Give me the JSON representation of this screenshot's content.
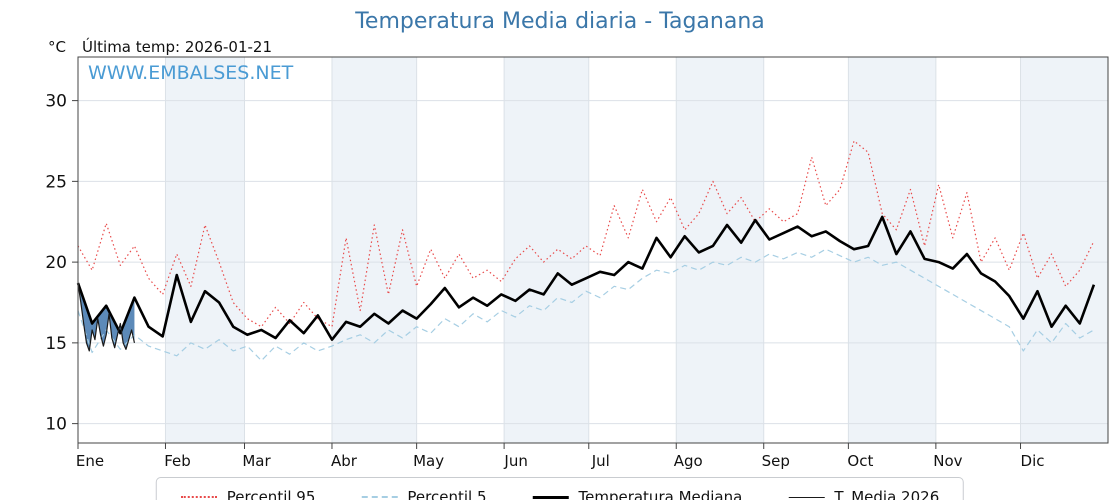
{
  "header": {
    "title": "Temperatura Media diaria - Taganana",
    "unit": "°C",
    "last_temp": "Última temp: 2026-01-21"
  },
  "watermark": "WWW.EMBALSES.NET",
  "legend": [
    {
      "label": "Percentil 95",
      "color": "#e84a4a",
      "line_style": "dotted",
      "thickness": 2
    },
    {
      "label": "Percentil 5",
      "color": "#a6cee3",
      "line_style": "dashed",
      "thickness": 2
    },
    {
      "label": "Temperatura Mediana",
      "color": "#000000",
      "line_style": "solid",
      "thickness": 3
    },
    {
      "label": "T. Media 2026",
      "color": "#1a1a1a",
      "line_style": "solid",
      "thickness": 1
    }
  ],
  "chart_data": {
    "type": "line",
    "title": "Temperatura Media diaria - Taganana",
    "xlabel": "",
    "ylabel": "°C",
    "ylim": [
      8.8,
      32.7
    ],
    "yticks": [
      10,
      15,
      20,
      25,
      30
    ],
    "x_max": 365,
    "grid": true,
    "band_color": "#eef3f8",
    "legend_position": "bottom",
    "month_labels": [
      "Ene",
      "Feb",
      "Mar",
      "Abr",
      "May",
      "Jun",
      "Jul",
      "Ago",
      "Sep",
      "Oct",
      "Nov",
      "Dic"
    ],
    "month_starts": [
      0,
      31,
      59,
      90,
      120,
      151,
      181,
      212,
      243,
      273,
      304,
      334
    ],
    "x_days": [
      0,
      5,
      10,
      15,
      20,
      25,
      30,
      35,
      40,
      45,
      50,
      55,
      60,
      65,
      70,
      75,
      80,
      85,
      90,
      95,
      100,
      105,
      110,
      115,
      120,
      125,
      130,
      135,
      140,
      145,
      150,
      155,
      160,
      165,
      170,
      175,
      180,
      185,
      190,
      195,
      200,
      205,
      210,
      215,
      220,
      225,
      230,
      235,
      240,
      245,
      250,
      255,
      260,
      265,
      270,
      275,
      280,
      285,
      290,
      295,
      300,
      305,
      310,
      315,
      320,
      325,
      330,
      335,
      340,
      345,
      350,
      355,
      360
    ],
    "series": [
      {
        "name": "Percentil 95",
        "color": "#e84a4a",
        "dash": "dotted",
        "width": 1.2,
        "values": [
          21.0,
          19.5,
          22.4,
          19.8,
          21.0,
          19.0,
          18.0,
          20.5,
          18.5,
          22.3,
          20.0,
          17.5,
          16.5,
          16.0,
          17.2,
          16.2,
          17.5,
          16.5,
          16.0,
          21.5,
          17.0,
          22.3,
          18.0,
          22.0,
          18.5,
          20.8,
          19.0,
          20.5,
          19.0,
          19.5,
          18.8,
          20.2,
          21.0,
          20.0,
          20.8,
          20.2,
          21.0,
          20.4,
          23.5,
          21.5,
          24.5,
          22.5,
          24.0,
          22.0,
          23.0,
          25.0,
          23.0,
          24.0,
          22.5,
          23.3,
          22.5,
          23.0,
          26.5,
          23.5,
          24.5,
          27.5,
          26.8,
          23.0,
          22.0,
          24.5,
          21.0,
          24.8,
          21.5,
          24.3,
          20.0,
          21.5,
          19.5,
          21.8,
          19.0,
          20.5,
          18.5,
          19.5,
          21.3
        ]
      },
      {
        "name": "Percentil 5",
        "color": "#a6cee3",
        "dash": "dashed",
        "width": 1.2,
        "values": [
          17.0,
          14.4,
          15.8,
          14.6,
          15.5,
          14.8,
          14.5,
          14.2,
          15.0,
          14.6,
          15.2,
          14.5,
          14.8,
          13.9,
          14.8,
          14.3,
          15.0,
          14.5,
          14.8,
          15.2,
          15.5,
          15.0,
          15.8,
          15.3,
          16.0,
          15.6,
          16.5,
          16.0,
          16.8,
          16.3,
          17.0,
          16.6,
          17.3,
          17.0,
          17.8,
          17.5,
          18.2,
          17.8,
          18.5,
          18.3,
          19.0,
          19.5,
          19.3,
          19.8,
          19.5,
          20.0,
          19.8,
          20.3,
          20.0,
          20.5,
          20.2,
          20.6,
          20.3,
          20.8,
          20.4,
          20.0,
          20.3,
          19.8,
          20.0,
          19.5,
          19.0,
          18.5,
          18.0,
          17.5,
          17.0,
          16.5,
          16.0,
          14.5,
          15.8,
          15.0,
          16.2,
          15.3,
          15.8
        ]
      },
      {
        "name": "Temperatura Mediana",
        "color": "#000000",
        "dash": "solid",
        "width": 2.6,
        "values": [
          18.7,
          16.2,
          17.3,
          15.6,
          17.8,
          16.0,
          15.4,
          19.2,
          16.3,
          18.2,
          17.5,
          16.0,
          15.5,
          15.8,
          15.3,
          16.4,
          15.6,
          16.7,
          15.2,
          16.3,
          16.0,
          16.8,
          16.2,
          17.0,
          16.5,
          17.4,
          18.4,
          17.2,
          17.8,
          17.3,
          18.0,
          17.6,
          18.3,
          18.0,
          19.3,
          18.6,
          19.0,
          19.4,
          19.2,
          20.0,
          19.6,
          21.5,
          20.3,
          21.6,
          20.6,
          21.0,
          22.3,
          21.2,
          22.6,
          21.4,
          21.8,
          22.2,
          21.6,
          21.9,
          21.3,
          20.8,
          21.0,
          22.8,
          20.5,
          21.9,
          20.2,
          20.0,
          19.6,
          20.5,
          19.3,
          18.8,
          17.9,
          16.5,
          18.2,
          16.0,
          17.3,
          16.2,
          18.6
        ]
      }
    ],
    "series_2026": {
      "name": "T. Media 2026",
      "color": "#1a1a1a",
      "width": 1.2,
      "fill_color": "#3f76ad",
      "x_days": [
        0,
        1,
        2,
        3,
        4,
        5,
        6,
        7,
        8,
        9,
        10,
        11,
        12,
        13,
        14,
        15,
        16,
        17,
        18,
        19,
        20
      ],
      "values": [
        18.7,
        17.5,
        16.2,
        15.0,
        14.5,
        15.8,
        15.2,
        16.5,
        15.5,
        14.8,
        15.5,
        16.8,
        15.3,
        14.7,
        15.5,
        16.2,
        15.0,
        14.6,
        15.2,
        15.8,
        15.0
      ]
    }
  }
}
